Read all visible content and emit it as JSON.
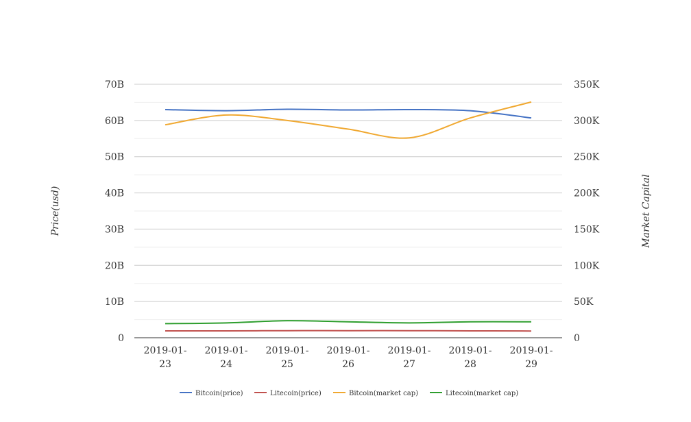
{
  "chart_data": {
    "type": "line",
    "title": "",
    "categories": [
      "2019-01-23",
      "2019-01-24",
      "2019-01-25",
      "2019-01-26",
      "2019-01-27",
      "2019-01-28",
      "2019-01-29"
    ],
    "category_lines": [
      [
        "2019-01-",
        "23"
      ],
      [
        "2019-01-",
        "24"
      ],
      [
        "2019-01-",
        "25"
      ],
      [
        "2019-01-",
        "26"
      ],
      [
        "2019-01-",
        "27"
      ],
      [
        "2019-01-",
        "28"
      ],
      [
        "2019-01-",
        "29"
      ]
    ],
    "y_left": {
      "label": "Price(usd)",
      "ylim": [
        0,
        70000000000
      ],
      "ticks": [
        0,
        10000000000,
        20000000000,
        30000000000,
        40000000000,
        50000000000,
        60000000000,
        70000000000
      ],
      "tick_labels": [
        "0",
        "10B",
        "20B",
        "30B",
        "40B",
        "50B",
        "60B",
        "70B"
      ]
    },
    "y_right": {
      "label": "Market Capital",
      "ylim": [
        0,
        350000
      ],
      "ticks": [
        0,
        50000,
        100000,
        150000,
        200000,
        250000,
        300000,
        350000
      ],
      "tick_labels": [
        "0",
        "50K",
        "100K",
        "150K",
        "200K",
        "250K",
        "300K",
        "350K"
      ]
    },
    "grid": true,
    "legend": "bottom-center",
    "series": [
      {
        "name": "Bitcoin(price)",
        "color": "#4472c4",
        "axis": "left",
        "values": [
          63000000000,
          62700000000,
          63100000000,
          62900000000,
          63000000000,
          62700000000,
          60700000000
        ]
      },
      {
        "name": "Litecoin(price)",
        "color": "#c0504d",
        "axis": "left",
        "values": [
          1900000000,
          1900000000,
          1950000000,
          1950000000,
          1950000000,
          1900000000,
          1850000000
        ]
      },
      {
        "name": "Bitcoin(market cap)",
        "color": "#f0a830",
        "axis": "left",
        "values": [
          58800000000,
          61500000000,
          60000000000,
          57600000000,
          55200000000,
          60700000000,
          65100000000
        ]
      },
      {
        "name": "Litecoin(market cap)",
        "color": "#2e9e2e",
        "axis": "left",
        "values": [
          3900000000,
          4100000000,
          4700000000,
          4400000000,
          4100000000,
          4400000000,
          4400000000
        ]
      }
    ]
  }
}
